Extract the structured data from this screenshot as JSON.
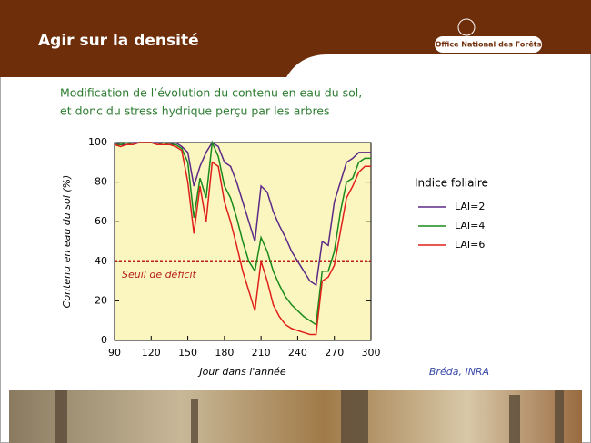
{
  "slide": {
    "title": "Agir sur la densité",
    "logo": "Office National des Forêts",
    "subtitle_lines": [
      "Modification de l’évolution du contenu en eau du sol,",
      "et donc du stress hydrique perçu par les arbres"
    ],
    "credit": "Bréda, INRA"
  },
  "chart_data": {
    "type": "line",
    "x_label": "Jour dans l'année",
    "y_label": "Contenu en eau du sol (%)",
    "legend_title": "Indice foliaire",
    "x": [
      90,
      95,
      100,
      105,
      110,
      115,
      120,
      125,
      130,
      135,
      140,
      145,
      150,
      155,
      160,
      165,
      170,
      175,
      180,
      185,
      190,
      195,
      200,
      205,
      210,
      215,
      220,
      225,
      230,
      235,
      240,
      245,
      250,
      255,
      260,
      265,
      270,
      275,
      280,
      285,
      290,
      295,
      300
    ],
    "series": [
      {
        "name": "LAI=2",
        "color": "#5b2a86",
        "values": [
          100,
          99,
          99,
          100,
          100,
          100,
          100,
          100,
          100,
          99,
          100,
          98,
          95,
          78,
          88,
          95,
          100,
          98,
          90,
          88,
          80,
          70,
          60,
          50,
          78,
          75,
          65,
          58,
          52,
          45,
          40,
          35,
          30,
          28,
          50,
          48,
          70,
          80,
          90,
          92,
          95,
          95,
          95
        ]
      },
      {
        "name": "LAI=4",
        "color": "#1a8a1a",
        "values": [
          99,
          99,
          100,
          99,
          100,
          100,
          100,
          99,
          100,
          99,
          99,
          97,
          90,
          62,
          82,
          72,
          100,
          93,
          78,
          72,
          62,
          50,
          40,
          35,
          52,
          45,
          35,
          28,
          22,
          18,
          15,
          12,
          10,
          8,
          35,
          35,
          45,
          65,
          80,
          82,
          90,
          92,
          92
        ]
      },
      {
        "name": "LAI=6",
        "color": "#e0201a",
        "values": [
          99,
          98,
          99,
          99,
          100,
          100,
          100,
          99,
          99,
          99,
          98,
          96,
          80,
          54,
          78,
          60,
          90,
          88,
          70,
          60,
          48,
          35,
          25,
          15,
          40,
          30,
          18,
          12,
          8,
          6,
          5,
          4,
          3,
          3,
          30,
          32,
          38,
          55,
          72,
          78,
          85,
          88,
          88
        ]
      }
    ],
    "threshold": {
      "value": 40,
      "label": "Seuil de déficit",
      "color": "#b8201a"
    },
    "xlim": [
      90,
      300
    ],
    "xticks": [
      90,
      120,
      150,
      180,
      210,
      240,
      270,
      300
    ],
    "ylim": [
      0,
      100
    ],
    "yticks": [
      0,
      20,
      40,
      60,
      80,
      100
    ],
    "plot_background": "#fbf6c0"
  }
}
